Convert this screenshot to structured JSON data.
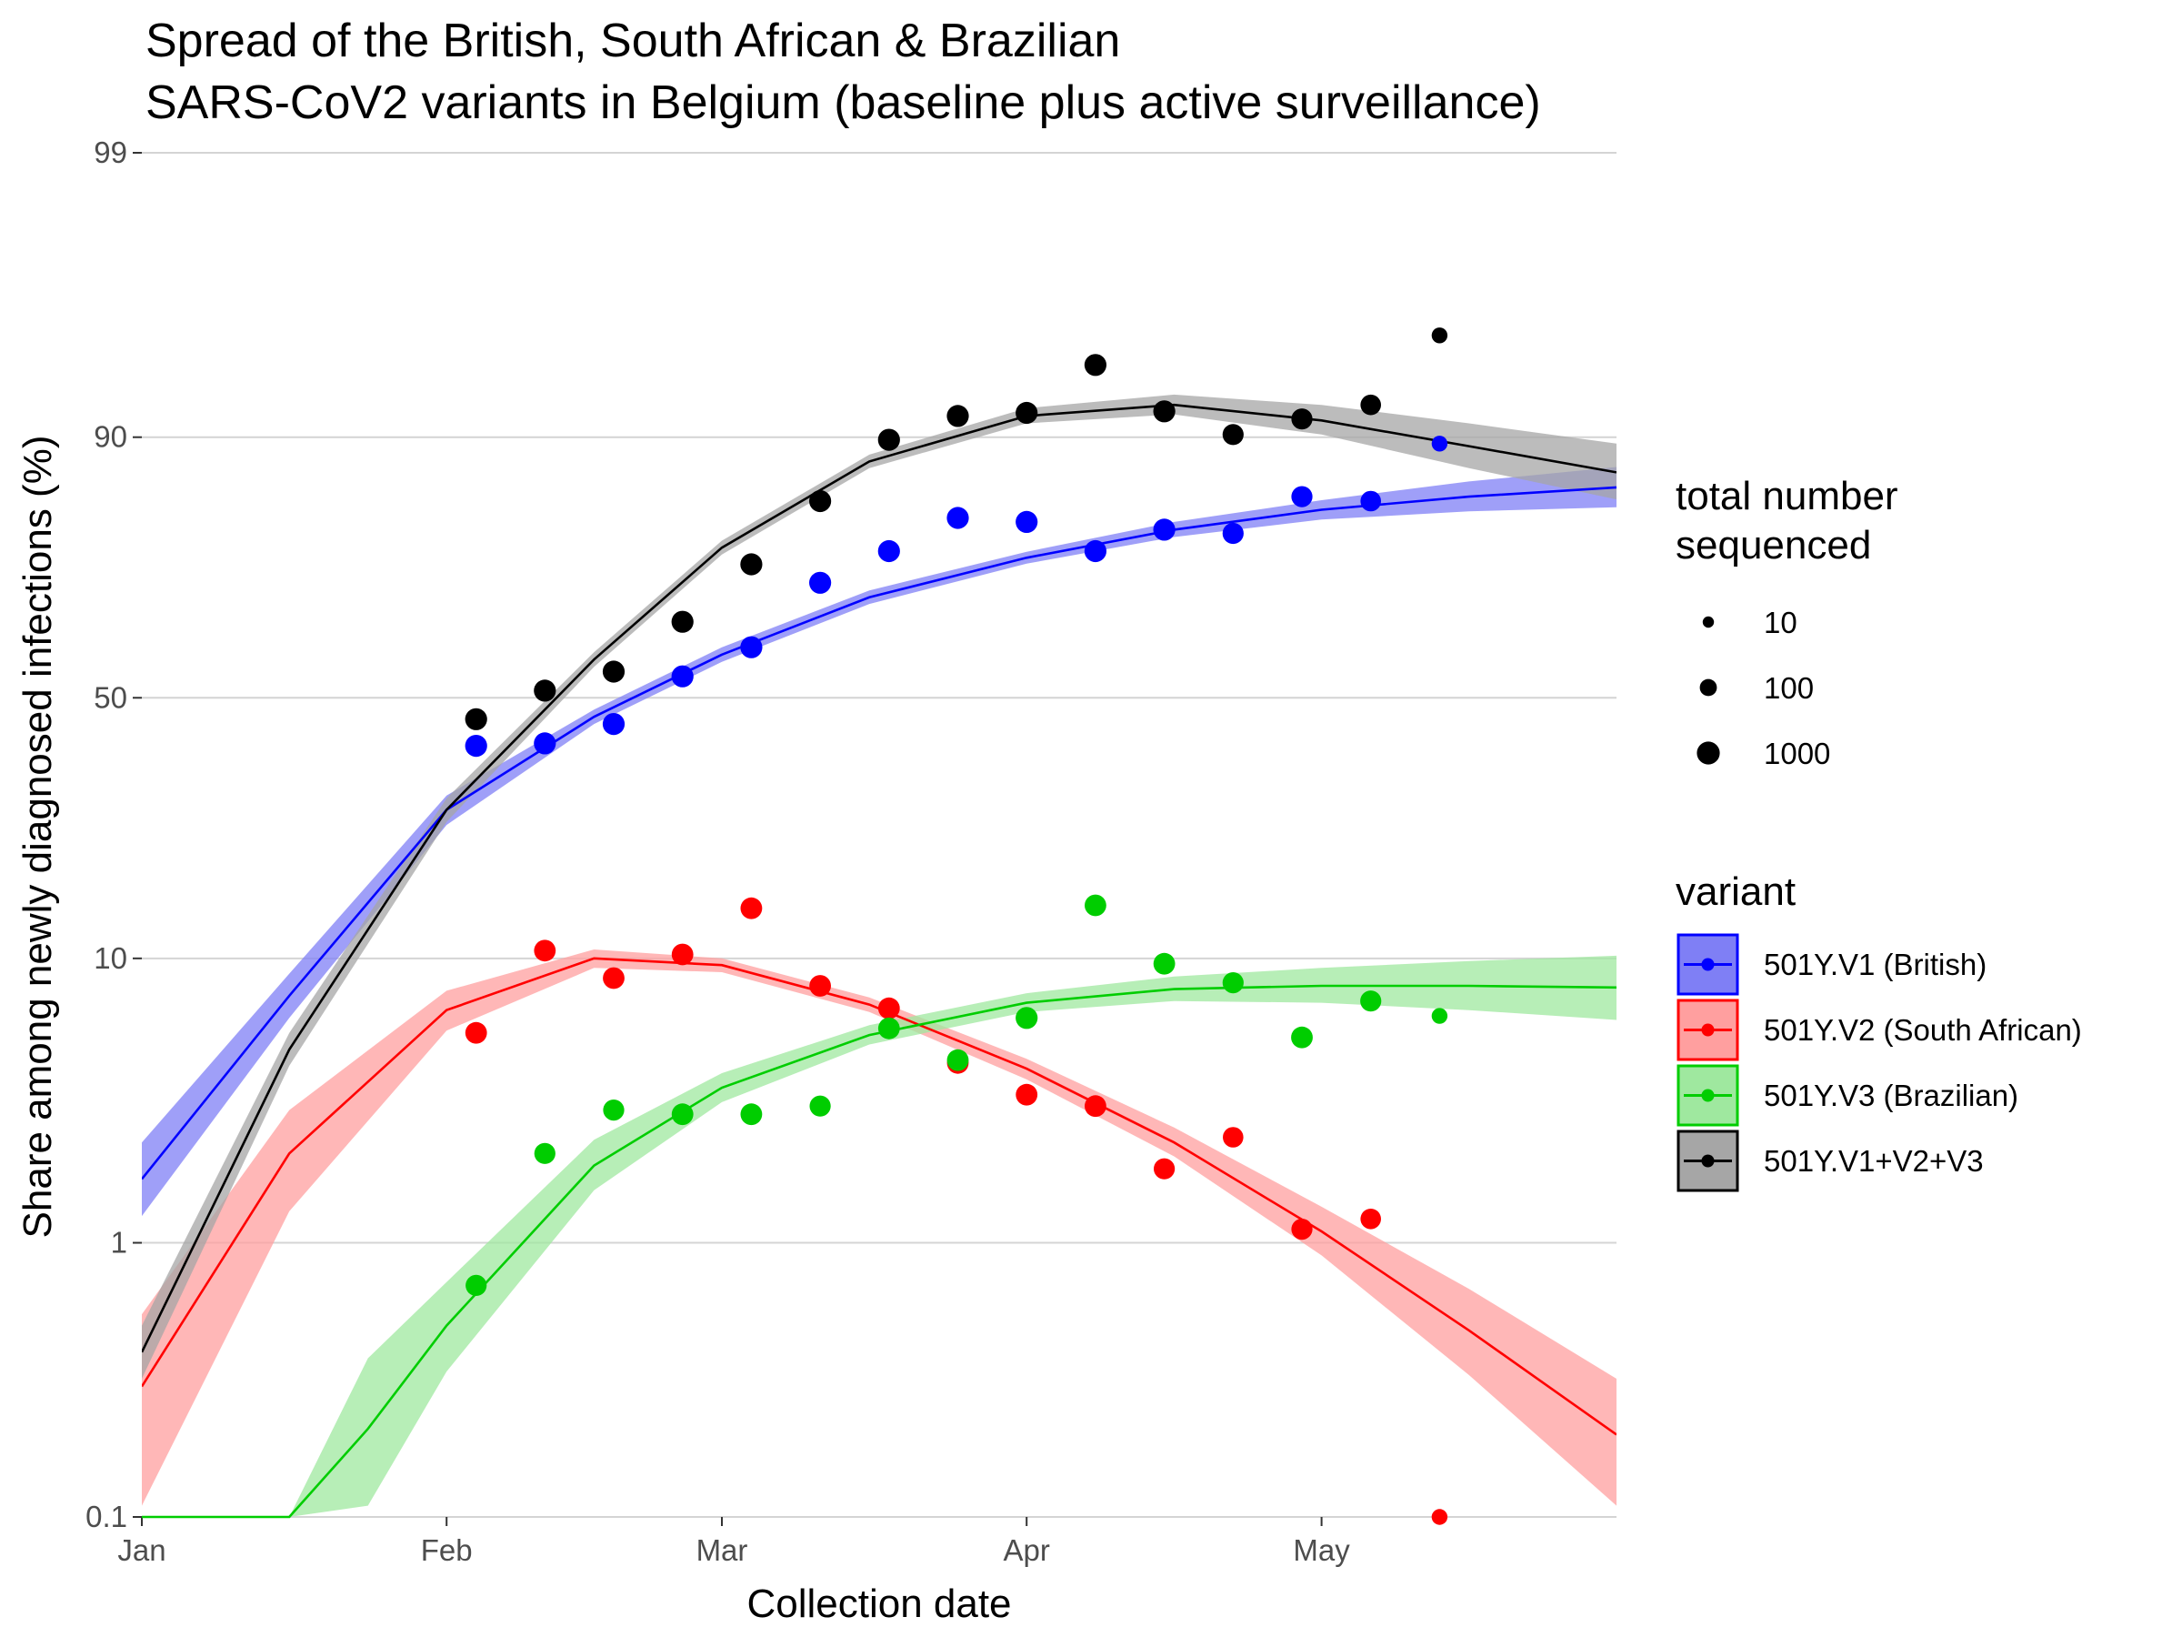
{
  "chart_data": {
    "type": "line",
    "title_lines": [
      "Spread of the British, South African & Brazilian",
      "SARS-CoV2 variants in Belgium (baseline plus active surveillance)"
    ],
    "xlabel": "Collection date",
    "ylabel": "Share among newly diagnosed infections (%)",
    "y_scale": "logit",
    "xlim": [
      "2021-01-01",
      "2021-05-31"
    ],
    "ylim": [
      0.1,
      99
    ],
    "x_ticks": [
      {
        "date": "2021-01-01",
        "label": "Jan"
      },
      {
        "date": "2021-02-01",
        "label": "Feb"
      },
      {
        "date": "2021-03-01",
        "label": "Mar"
      },
      {
        "date": "2021-04-01",
        "label": "Apr"
      },
      {
        "date": "2021-05-01",
        "label": "May"
      }
    ],
    "y_ticks": [
      {
        "value": 0.1,
        "label": "0.1"
      },
      {
        "value": 1,
        "label": "1"
      },
      {
        "value": 10,
        "label": "10"
      },
      {
        "value": 50,
        "label": "50"
      },
      {
        "value": 90,
        "label": "90"
      },
      {
        "value": 99,
        "label": "99"
      }
    ],
    "grid": true,
    "legend_position": "right",
    "size_legend": {
      "title_lines": [
        "total number",
        "sequenced"
      ],
      "entries": [
        {
          "label": "10",
          "value": 10
        },
        {
          "label": "100",
          "value": 100
        },
        {
          "label": "1000",
          "value": 1000
        }
      ]
    },
    "variant_legend": {
      "title": "variant"
    },
    "series": [
      {
        "name": "501Y.V1 (British)",
        "color": "#0000ff",
        "band_color": "#7f7ff5",
        "points": [
          {
            "x": "2021-02-04",
            "y": 40,
            "n": 700
          },
          {
            "x": "2021-02-11",
            "y": 40.5,
            "n": 700
          },
          {
            "x": "2021-02-18",
            "y": 44.5,
            "n": 700
          },
          {
            "x": "2021-02-25",
            "y": 54.5,
            "n": 700
          },
          {
            "x": "2021-03-04",
            "y": 60.5,
            "n": 700
          },
          {
            "x": "2021-03-11",
            "y": 72.5,
            "n": 700
          },
          {
            "x": "2021-03-18",
            "y": 77.5,
            "n": 700
          },
          {
            "x": "2021-03-25",
            "y": 82,
            "n": 700
          },
          {
            "x": "2021-04-01",
            "y": 81.5,
            "n": 700
          },
          {
            "x": "2021-04-08",
            "y": 77.5,
            "n": 700
          },
          {
            "x": "2021-04-15",
            "y": 80.5,
            "n": 700
          },
          {
            "x": "2021-04-22",
            "y": 80,
            "n": 500
          },
          {
            "x": "2021-04-29",
            "y": 84.5,
            "n": 500
          },
          {
            "x": "2021-05-06",
            "y": 84,
            "n": 400
          },
          {
            "x": "2021-05-13",
            "y": 89.5,
            "n": 60
          }
        ],
        "fit": [
          {
            "x": "2021-01-01",
            "y": 1.7,
            "lo": 1.25,
            "hi": 2.3
          },
          {
            "x": "2021-01-16",
            "y": 7.5,
            "lo": 6.3,
            "hi": 8.9
          },
          {
            "x": "2021-02-01",
            "y": 28,
            "lo": 25.5,
            "hi": 30.5
          },
          {
            "x": "2021-02-16",
            "y": 46,
            "lo": 44.5,
            "hi": 47.5
          },
          {
            "x": "2021-03-01",
            "y": 59,
            "lo": 57.5,
            "hi": 60.5
          },
          {
            "x": "2021-03-16",
            "y": 70,
            "lo": 68.8,
            "hi": 71.2
          },
          {
            "x": "2021-04-01",
            "y": 76.5,
            "lo": 75.6,
            "hi": 77.4
          },
          {
            "x": "2021-04-16",
            "y": 80.5,
            "lo": 79.5,
            "hi": 81.5
          },
          {
            "x": "2021-05-01",
            "y": 83,
            "lo": 81.8,
            "hi": 84.1
          },
          {
            "x": "2021-05-16",
            "y": 84.5,
            "lo": 82.8,
            "hi": 86.1
          },
          {
            "x": "2021-05-31",
            "y": 85.5,
            "lo": 83.3,
            "hi": 87.5
          }
        ]
      },
      {
        "name": "501Y.V2 (South African)",
        "color": "#ff0000",
        "band_color": "#ff9f9f",
        "points": [
          {
            "x": "2021-02-04",
            "y": 5.6,
            "n": 600
          },
          {
            "x": "2021-02-11",
            "y": 10.6,
            "n": 600
          },
          {
            "x": "2021-02-18",
            "y": 8.6,
            "n": 600
          },
          {
            "x": "2021-02-25",
            "y": 10.3,
            "n": 600
          },
          {
            "x": "2021-03-04",
            "y": 14.5,
            "n": 600
          },
          {
            "x": "2021-03-11",
            "y": 8.1,
            "n": 600
          },
          {
            "x": "2021-03-18",
            "y": 6.8,
            "n": 600
          },
          {
            "x": "2021-03-25",
            "y": 4.4,
            "n": 600
          },
          {
            "x": "2021-04-01",
            "y": 3.4,
            "n": 600
          },
          {
            "x": "2021-04-08",
            "y": 3.1,
            "n": 600
          },
          {
            "x": "2021-04-15",
            "y": 1.85,
            "n": 500
          },
          {
            "x": "2021-04-22",
            "y": 2.4,
            "n": 400
          },
          {
            "x": "2021-04-29",
            "y": 1.12,
            "n": 500
          },
          {
            "x": "2021-05-06",
            "y": 1.22,
            "n": 400
          },
          {
            "x": "2021-05-13",
            "y": 0.1,
            "n": 60
          }
        ],
        "fit": [
          {
            "x": "2021-01-01",
            "y": 0.3,
            "lo": 0.11,
            "hi": 0.55
          },
          {
            "x": "2021-01-16",
            "y": 2.1,
            "lo": 1.3,
            "hi": 3.0
          },
          {
            "x": "2021-02-01",
            "y": 6.7,
            "lo": 5.7,
            "hi": 7.8
          },
          {
            "x": "2021-02-16",
            "y": 10,
            "lo": 9.3,
            "hi": 10.7
          },
          {
            "x": "2021-03-01",
            "y": 9.5,
            "lo": 9.0,
            "hi": 10.0
          },
          {
            "x": "2021-03-16",
            "y": 7.0,
            "lo": 6.6,
            "hi": 7.4
          },
          {
            "x": "2021-04-01",
            "y": 4.2,
            "lo": 3.85,
            "hi": 4.55
          },
          {
            "x": "2021-04-16",
            "y": 2.3,
            "lo": 2.05,
            "hi": 2.6
          },
          {
            "x": "2021-05-01",
            "y": 1.1,
            "lo": 0.9,
            "hi": 1.35
          },
          {
            "x": "2021-05-16",
            "y": 0.48,
            "lo": 0.33,
            "hi": 0.68
          },
          {
            "x": "2021-05-31",
            "y": 0.2,
            "lo": 0.11,
            "hi": 0.32
          }
        ]
      },
      {
        "name": "501Y.V3 (Brazilian)",
        "color": "#00cd00",
        "band_color": "#9fe89f",
        "points": [
          {
            "x": "2021-02-04",
            "y": 0.7,
            "n": 500
          },
          {
            "x": "2021-02-11",
            "y": 2.1,
            "n": 500
          },
          {
            "x": "2021-02-18",
            "y": 3.0,
            "n": 500
          },
          {
            "x": "2021-02-25",
            "y": 2.9,
            "n": 600
          },
          {
            "x": "2021-03-04",
            "y": 2.9,
            "n": 600
          },
          {
            "x": "2021-03-11",
            "y": 3.1,
            "n": 500
          },
          {
            "x": "2021-03-18",
            "y": 5.8,
            "n": 600
          },
          {
            "x": "2021-03-25",
            "y": 4.5,
            "n": 600
          },
          {
            "x": "2021-04-01",
            "y": 6.3,
            "n": 700
          },
          {
            "x": "2021-04-08",
            "y": 14.8,
            "n": 600
          },
          {
            "x": "2021-04-15",
            "y": 9.6,
            "n": 600
          },
          {
            "x": "2021-04-22",
            "y": 8.3,
            "n": 500
          },
          {
            "x": "2021-04-29",
            "y": 5.4,
            "n": 600
          },
          {
            "x": "2021-05-06",
            "y": 7.2,
            "n": 500
          },
          {
            "x": "2021-05-13",
            "y": 6.4,
            "n": 60
          }
        ],
        "fit": [
          {
            "x": "2021-01-01",
            "y": 0.1,
            "lo": 0.1,
            "hi": 0.1
          },
          {
            "x": "2021-01-16",
            "y": 0.1,
            "lo": 0.1,
            "hi": 0.1
          },
          {
            "x": "2021-01-24",
            "y": 0.21,
            "lo": 0.11,
            "hi": 0.38
          },
          {
            "x": "2021-02-01",
            "y": 0.5,
            "lo": 0.34,
            "hi": 0.72
          },
          {
            "x": "2021-02-16",
            "y": 1.9,
            "lo": 1.55,
            "hi": 2.35
          },
          {
            "x": "2021-03-01",
            "y": 3.6,
            "lo": 3.2,
            "hi": 4.05
          },
          {
            "x": "2021-03-16",
            "y": 5.5,
            "lo": 5.1,
            "hi": 5.95
          },
          {
            "x": "2021-04-01",
            "y": 7.1,
            "lo": 6.6,
            "hi": 7.65
          },
          {
            "x": "2021-04-16",
            "y": 7.9,
            "lo": 7.2,
            "hi": 8.7
          },
          {
            "x": "2021-05-01",
            "y": 8.1,
            "lo": 7.1,
            "hi": 9.3
          },
          {
            "x": "2021-05-16",
            "y": 8.1,
            "lo": 6.7,
            "hi": 9.8
          },
          {
            "x": "2021-05-31",
            "y": 8.0,
            "lo": 6.2,
            "hi": 10.2
          }
        ]
      },
      {
        "name": "501Y.V1+V2+V3",
        "color": "#000000",
        "band_color": "#a6a6a6",
        "points": [
          {
            "x": "2021-02-04",
            "y": 45.5,
            "n": 700
          },
          {
            "x": "2021-02-11",
            "y": 51.5,
            "n": 700
          },
          {
            "x": "2021-02-18",
            "y": 55.5,
            "n": 700
          },
          {
            "x": "2021-02-25",
            "y": 65.5,
            "n": 700
          },
          {
            "x": "2021-03-04",
            "y": 75.5,
            "n": 700
          },
          {
            "x": "2021-03-11",
            "y": 84,
            "n": 700
          },
          {
            "x": "2021-03-18",
            "y": 89.8,
            "n": 700
          },
          {
            "x": "2021-03-25",
            "y": 91.5,
            "n": 700
          },
          {
            "x": "2021-04-01",
            "y": 91.7,
            "n": 700
          },
          {
            "x": "2021-04-08",
            "y": 94.3,
            "n": 700
          },
          {
            "x": "2021-04-15",
            "y": 91.8,
            "n": 700
          },
          {
            "x": "2021-04-22",
            "y": 90.2,
            "n": 500
          },
          {
            "x": "2021-04-29",
            "y": 91.3,
            "n": 500
          },
          {
            "x": "2021-05-06",
            "y": 92.2,
            "n": 400
          },
          {
            "x": "2021-05-13",
            "y": 95.5,
            "n": 60
          }
        ],
        "fit": [
          {
            "x": "2021-01-01",
            "y": 0.4,
            "lo": 0.32,
            "hi": 0.5
          },
          {
            "x": "2021-01-16",
            "y": 4.9,
            "lo": 4.3,
            "hi": 5.6
          },
          {
            "x": "2021-02-01",
            "y": 28,
            "lo": 26,
            "hi": 30
          },
          {
            "x": "2021-02-16",
            "y": 58,
            "lo": 56.5,
            "hi": 59.5
          },
          {
            "x": "2021-03-01",
            "y": 78,
            "lo": 77,
            "hi": 79
          },
          {
            "x": "2021-03-16",
            "y": 88,
            "lo": 87.4,
            "hi": 88.6
          },
          {
            "x": "2021-04-01",
            "y": 91.5,
            "lo": 91,
            "hi": 92
          },
          {
            "x": "2021-04-16",
            "y": 92.2,
            "lo": 91.6,
            "hi": 92.8
          },
          {
            "x": "2021-05-01",
            "y": 91.2,
            "lo": 90.2,
            "hi": 92.2
          },
          {
            "x": "2021-05-16",
            "y": 89.3,
            "lo": 87.4,
            "hi": 91
          },
          {
            "x": "2021-05-31",
            "y": 87,
            "lo": 84.2,
            "hi": 89.5
          }
        ]
      }
    ]
  }
}
